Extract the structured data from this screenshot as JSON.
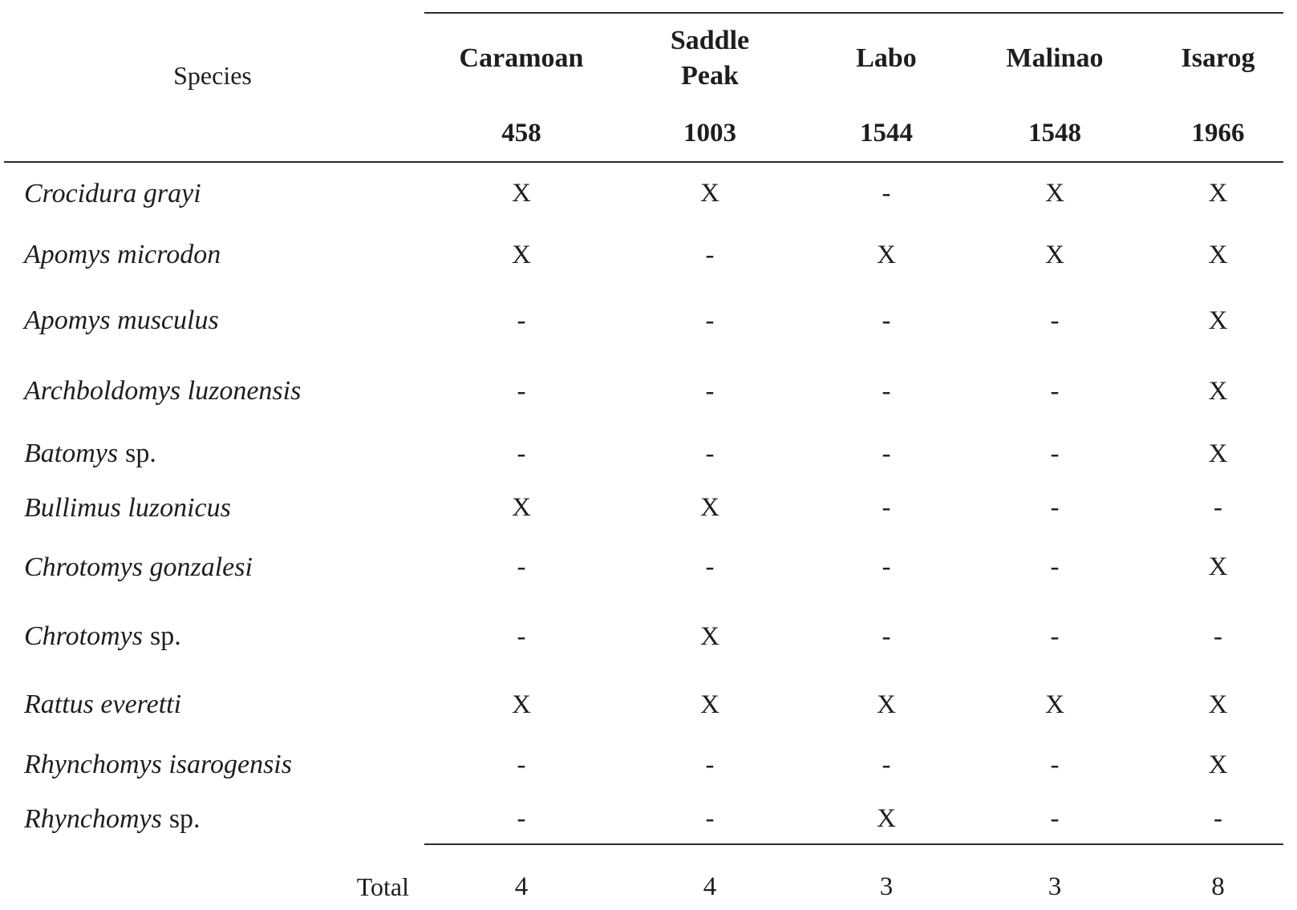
{
  "table": {
    "species_header": "Species",
    "total_label": "Total",
    "columns": [
      {
        "name": "Caramoan",
        "elevation": "458"
      },
      {
        "name": "Saddle Peak",
        "elevation": "1003"
      },
      {
        "name": "Labo",
        "elevation": "1544"
      },
      {
        "name": "Malinao",
        "elevation": "1548"
      },
      {
        "name": "Isarog",
        "elevation": "1966"
      }
    ],
    "rows": [
      {
        "species_italic": "Crocidura grayi",
        "species_roman": "",
        "marks": [
          "X",
          "X",
          "-",
          "X",
          "X"
        ]
      },
      {
        "species_italic": "Apomys microdon",
        "species_roman": "",
        "marks": [
          "X",
          "-",
          "X",
          "X",
          "X"
        ]
      },
      {
        "species_italic": "Apomys musculus",
        "species_roman": "",
        "marks": [
          "-",
          "-",
          "-",
          "-",
          "X"
        ]
      },
      {
        "species_italic": "Archboldomys luzonensis",
        "species_roman": "",
        "marks": [
          "-",
          "-",
          "-",
          "-",
          "X"
        ]
      },
      {
        "species_italic": "Batomys",
        "species_roman": "sp.",
        "marks": [
          "-",
          "-",
          "-",
          "-",
          "X"
        ]
      },
      {
        "species_italic": "Bullimus luzonicus",
        "species_roman": "",
        "marks": [
          "X",
          "X",
          "-",
          "-",
          "-"
        ]
      },
      {
        "species_italic": "Chrotomys gonzalesi",
        "species_roman": "",
        "marks": [
          "-",
          "-",
          "-",
          "-",
          "X"
        ]
      },
      {
        "species_italic": "Chrotomys",
        "species_roman": "sp.",
        "marks": [
          "-",
          "X",
          "-",
          "-",
          "-"
        ]
      },
      {
        "species_italic": "Rattus everetti",
        "species_roman": "",
        "marks": [
          "X",
          "X",
          "X",
          "X",
          "X"
        ]
      },
      {
        "species_italic": "Rhynchomys isarogensis",
        "species_roman": "",
        "marks": [
          "-",
          "-",
          "-",
          "-",
          "X"
        ]
      },
      {
        "species_italic": "Rhynchomys",
        "species_roman": "sp.",
        "marks": [
          "-",
          "-",
          "X",
          "-",
          "-"
        ]
      }
    ],
    "totals": [
      "4",
      "4",
      "3",
      "3",
      "8"
    ]
  },
  "colors": {
    "text": "#1e1e1e",
    "rule": "#2b2b2b",
    "background": "#ffffff"
  }
}
